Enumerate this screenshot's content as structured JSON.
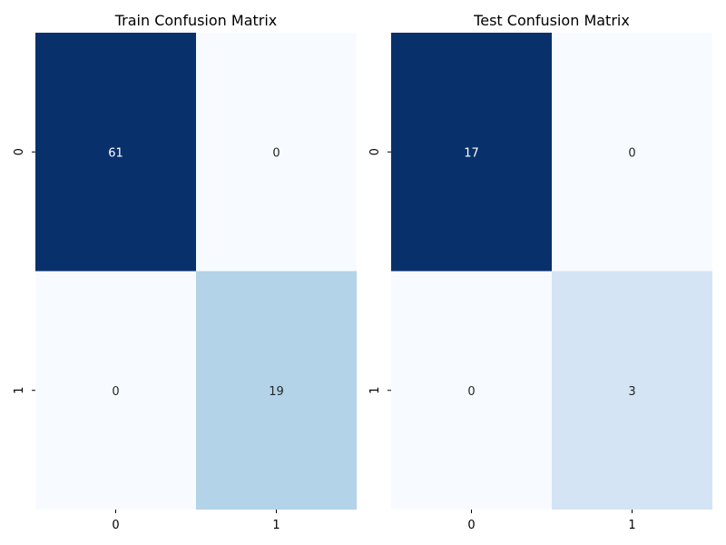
{
  "chart_data": [
    {
      "type": "heatmap",
      "title": "Train Confusion Matrix",
      "xlabel": "",
      "ylabel": "",
      "x_categories": [
        "0",
        "1"
      ],
      "y_categories": [
        "0",
        "1"
      ],
      "values": [
        [
          61,
          0
        ],
        [
          0,
          19
        ]
      ],
      "colormap": "Blues",
      "colorbar": false,
      "grid": false
    },
    {
      "type": "heatmap",
      "title": "Test Confusion Matrix",
      "xlabel": "",
      "ylabel": "",
      "x_categories": [
        "0",
        "1"
      ],
      "y_categories": [
        "0",
        "1"
      ],
      "values": [
        [
          17,
          0
        ],
        [
          0,
          3
        ]
      ],
      "colormap": "Blues",
      "colorbar": false,
      "grid": false
    }
  ],
  "colors": {
    "low": "#f7fbff",
    "high": "#08306b",
    "light_text": "#ffffff",
    "dark_text": "#262626"
  }
}
